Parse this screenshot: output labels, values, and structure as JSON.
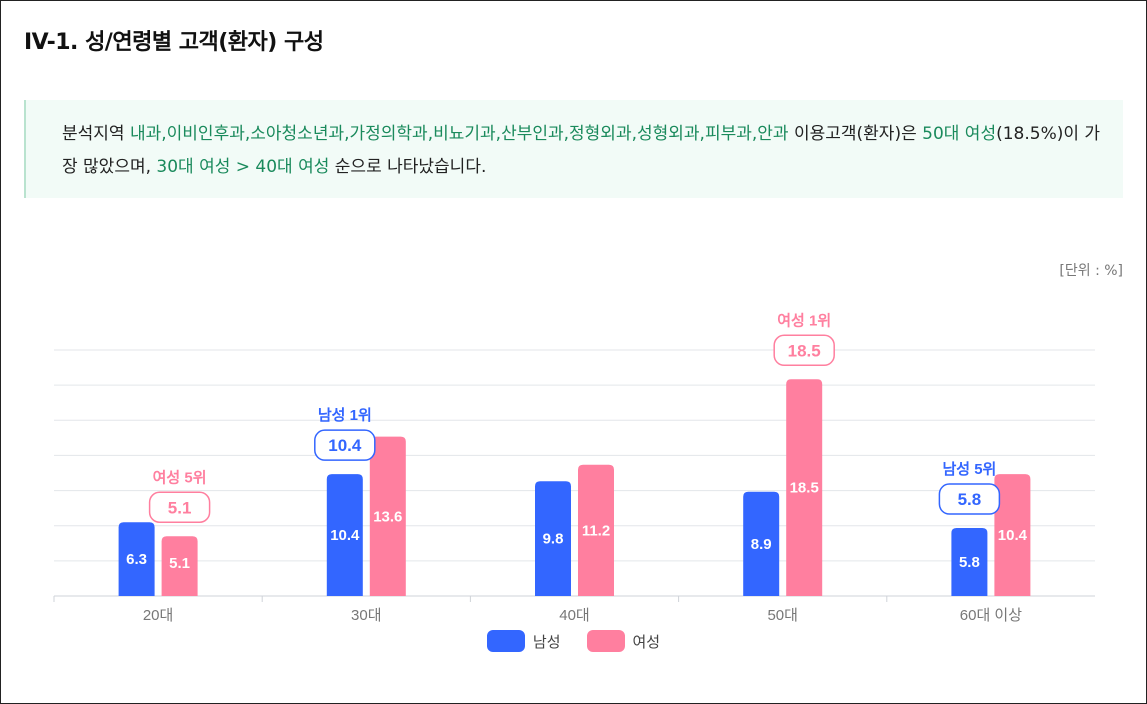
{
  "page": {
    "title": "IV-1. 성/연령별 고객(환자) 구성",
    "summary": {
      "p1": "분석지역 ",
      "depts": "내과,이비인후과,소아청소년과,가정의학과,비뇨기과,산부인과,정형외과,성형외과,피부과,안과",
      "p2": " 이용고객(환자)은 ",
      "top": "50대 여성",
      "p3": "(18.5%)이 가장 많았으며, ",
      "order": "30대 여성 > 40대 여성",
      "p4": " 순으로 나타났습니다."
    },
    "unit_label": "[단위 : %]"
  },
  "colors": {
    "male": "#3366ff",
    "female": "#ff7f9f",
    "grid": "#e3e6ea",
    "axis": "#cfd3d8"
  },
  "chart_data": {
    "type": "bar",
    "categories": [
      "20대",
      "30대",
      "40대",
      "50대",
      "60대 이상"
    ],
    "series": [
      {
        "name": "남성",
        "values": [
          6.3,
          10.4,
          9.8,
          8.9,
          5.8
        ]
      },
      {
        "name": "여성",
        "values": [
          5.1,
          13.6,
          11.2,
          18.5,
          10.4
        ]
      }
    ],
    "ylim": [
      0,
      21
    ],
    "grid": true,
    "legend": "bottom-center",
    "annotations": [
      {
        "category": "20대",
        "series": "여성",
        "label": "여성 5위",
        "value": "5.1"
      },
      {
        "category": "30대",
        "series": "남성",
        "label": "남성 1위",
        "value": "10.4"
      },
      {
        "category": "50대",
        "series": "여성",
        "label": "여성 1위",
        "value": "18.5"
      },
      {
        "category": "60대 이상",
        "series": "남성",
        "label": "남성 5위",
        "value": "5.8"
      }
    ]
  }
}
